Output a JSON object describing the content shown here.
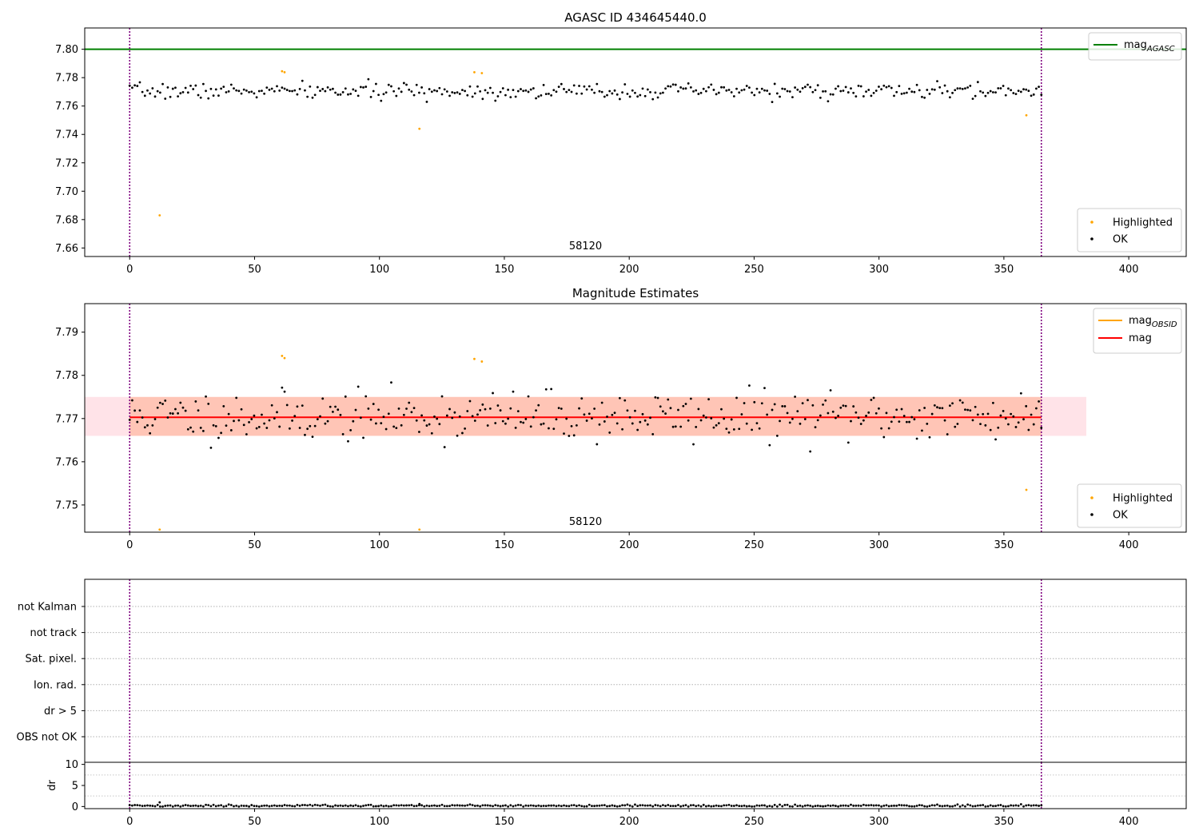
{
  "chart_data": [
    {
      "type": "scatter",
      "title": "AGASC ID 434645440.0",
      "annotation": "58120",
      "xlim": [
        -18,
        423
      ],
      "ylim": [
        7.654,
        7.815
      ],
      "xticks": [
        0,
        50,
        100,
        150,
        200,
        250,
        300,
        350,
        400
      ],
      "yticks": [
        7.66,
        7.68,
        7.7,
        7.72,
        7.74,
        7.76,
        7.78,
        7.8
      ],
      "ytick_labels": [
        "7.66",
        "7.68",
        "7.70",
        "7.72",
        "7.74",
        "7.76",
        "7.78",
        "7.80"
      ],
      "vlines": [
        0,
        365
      ],
      "hline": {
        "name": "mag_AGASC",
        "y": 7.8,
        "color": "#008000"
      },
      "legend_top": [
        {
          "base": "mag",
          "sub": "AGASC",
          "color": "#008000"
        }
      ],
      "legend_bottom": [
        {
          "label": "Highlighted",
          "color": "#ffa500"
        },
        {
          "label": "OK",
          "color": "#000000"
        }
      ],
      "series": [
        {
          "name": "Highlighted",
          "color": "#ffa500",
          "points": [
            [
              12,
              7.683
            ],
            [
              61,
              7.7845
            ],
            [
              62,
              7.7838
            ],
            [
              116,
              7.744
            ],
            [
              138,
              7.7838
            ],
            [
              141,
              7.7832
            ],
            [
              359,
              7.7535
            ]
          ]
        },
        {
          "name": "OK",
          "color": "#000000",
          "seed": 7,
          "count": 360,
          "x_range": [
            0,
            365
          ],
          "center": 7.7705,
          "spread": 0.0045
        }
      ]
    },
    {
      "type": "scatter",
      "title": "Magnitude Estimates",
      "annotation": "58120",
      "xlim": [
        -18,
        423
      ],
      "ylim": [
        7.7437,
        7.7966
      ],
      "xticks": [
        0,
        50,
        100,
        150,
        200,
        250,
        300,
        350,
        400
      ],
      "yticks": [
        7.75,
        7.76,
        7.77,
        7.78,
        7.79
      ],
      "ytick_labels": [
        "7.75",
        "7.76",
        "7.77",
        "7.78",
        "7.79"
      ],
      "vlines": [
        0,
        365
      ],
      "mag_line": {
        "y": 7.7703,
        "x_range": [
          0,
          365
        ],
        "color": "#ff0000"
      },
      "bands": [
        {
          "x_range": [
            -18,
            383
          ],
          "y_range": [
            7.766,
            7.775
          ],
          "color": "#ffc0cb"
        },
        {
          "x_range": [
            0,
            365
          ],
          "y_range": [
            7.766,
            7.775
          ],
          "color": "#ffa07a"
        }
      ],
      "legend_top": [
        {
          "base": "mag",
          "sub": "OBSID",
          "color": "#ffa500"
        },
        {
          "base": "mag",
          "sub": "",
          "color": "#ff0000"
        }
      ],
      "legend_bottom": [
        {
          "label": "Highlighted",
          "color": "#ffa500"
        },
        {
          "label": "OK",
          "color": "#000000"
        }
      ],
      "series": [
        {
          "name": "Highlighted",
          "color": "#ffa500",
          "points": [
            [
              12,
              7.7443
            ],
            [
              61,
              7.7845
            ],
            [
              62,
              7.784
            ],
            [
              116,
              7.7443
            ],
            [
              138,
              7.7838
            ],
            [
              141,
              7.7832
            ],
            [
              359,
              7.7535
            ]
          ]
        },
        {
          "name": "OK",
          "color": "#000000",
          "seed": 11,
          "count": 360,
          "x_range": [
            0,
            365
          ],
          "center": 7.7705,
          "spread": 0.0048
        }
      ]
    },
    {
      "type": "scatter",
      "title": "",
      "xlim": [
        -18,
        423
      ],
      "category_labels": [
        "not Kalman",
        "not track",
        "Sat. pixel.",
        "Ion. rad.",
        "dr > 5",
        "OBS not OK"
      ],
      "vlines": [
        0,
        365
      ]
    },
    {
      "type": "scatter",
      "title": "",
      "ylabel": "dr",
      "xlim": [
        -18,
        423
      ],
      "ylim": [
        -0.5,
        10.5
      ],
      "xticks": [
        0,
        50,
        100,
        150,
        200,
        250,
        300,
        350,
        400
      ],
      "yticks": [
        0,
        5,
        10
      ],
      "ytick_labels": [
        "0",
        "5",
        "10"
      ],
      "vlines": [
        0,
        365
      ],
      "series": [
        {
          "name": "dr",
          "color": "#000000",
          "seed": 5,
          "count": 360,
          "x_range": [
            0,
            365
          ],
          "center": 0.2,
          "spread": 0.12,
          "extra": [
            [
              12,
              1.0
            ],
            [
              116,
              0.6
            ]
          ]
        }
      ]
    }
  ]
}
